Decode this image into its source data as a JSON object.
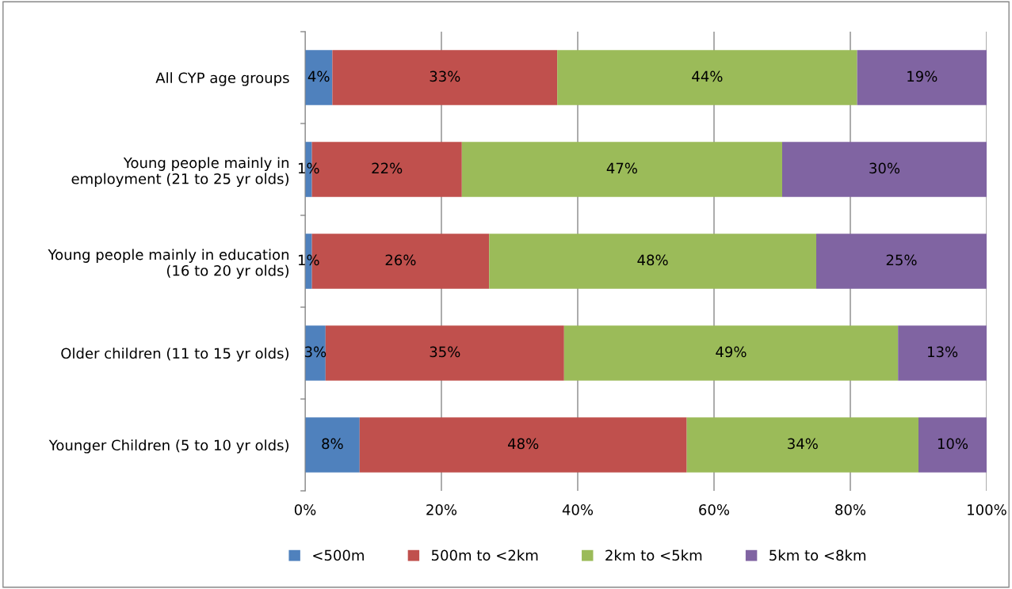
{
  "chart_data": {
    "type": "bar",
    "orientation": "horizontal",
    "stacked": true,
    "categories": [
      "All CYP age groups",
      "Young people mainly in\nemployment (21 to 25 yr olds)",
      "Young people mainly in education\n(16 to 20 yr olds)",
      "Older children (11 to 15 yr olds)",
      "Younger Children (5 to 10 yr olds)"
    ],
    "series": [
      {
        "name": "<500m",
        "color": "#4f81bd",
        "values": [
          4,
          1,
          1,
          3,
          8
        ],
        "value_labels": [
          "4%",
          "1%",
          "1%",
          "3%",
          "8%"
        ]
      },
      {
        "name": "500m to <2km",
        "color": "#c0504d",
        "values": [
          33,
          22,
          26,
          35,
          48
        ],
        "value_labels": [
          "33%",
          "22%",
          "26%",
          "35%",
          "48%"
        ]
      },
      {
        "name": "2km to <5km",
        "color": "#9bbb59",
        "values": [
          44,
          47,
          48,
          49,
          34
        ],
        "value_labels": [
          "44%",
          "47%",
          "48%",
          "49%",
          "34%"
        ]
      },
      {
        "name": "5km to <8km",
        "color": "#8064a2",
        "values": [
          19,
          30,
          25,
          13,
          10
        ],
        "value_labels": [
          "19%",
          "30%",
          "25%",
          "13%",
          "10%"
        ]
      }
    ],
    "xlim": [
      0,
      100
    ],
    "xticks": [
      {
        "value": 0,
        "label": "0%"
      },
      {
        "value": 20,
        "label": "20%"
      },
      {
        "value": 40,
        "label": "40%"
      },
      {
        "value": 60,
        "label": "60%"
      },
      {
        "value": 80,
        "label": "80%"
      },
      {
        "value": 100,
        "label": "100%"
      }
    ],
    "grid": "x",
    "legend": "bottom"
  }
}
